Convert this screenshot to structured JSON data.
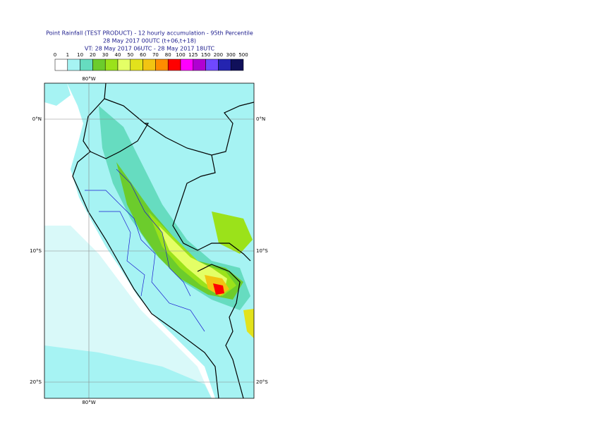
{
  "header": {
    "title": "Point Rainfall (TEST PRODUCT) - 12 hourly accumulation - 95th Percentile",
    "line2": "28 May 2017 00UTC (t+06,t+18)",
    "line3": "VT: 28 May 2017 06UTC - 28 May 2017 18UTC"
  },
  "legend": {
    "labels": [
      0,
      1,
      10,
      20,
      30,
      40,
      50,
      60,
      70,
      80,
      100,
      125,
      150,
      200,
      300,
      500
    ],
    "colors": [
      "#ffffff",
      "#a6f3f3",
      "#66dcc0",
      "#6ccc2c",
      "#9be21a",
      "#e4ff66",
      "#e2e21c",
      "#f2c412",
      "#ff8c00",
      "#ff0000",
      "#ff00ff",
      "#b000d2",
      "#7048ff",
      "#2424b0",
      "#10105a"
    ]
  },
  "map": {
    "lon_top": "80°W",
    "lon_bottom": "80°W",
    "lat_left": [
      "0°N",
      "10°S",
      "20°S"
    ],
    "lat_right": [
      "0°N",
      "10°S",
      "20°S"
    ]
  }
}
